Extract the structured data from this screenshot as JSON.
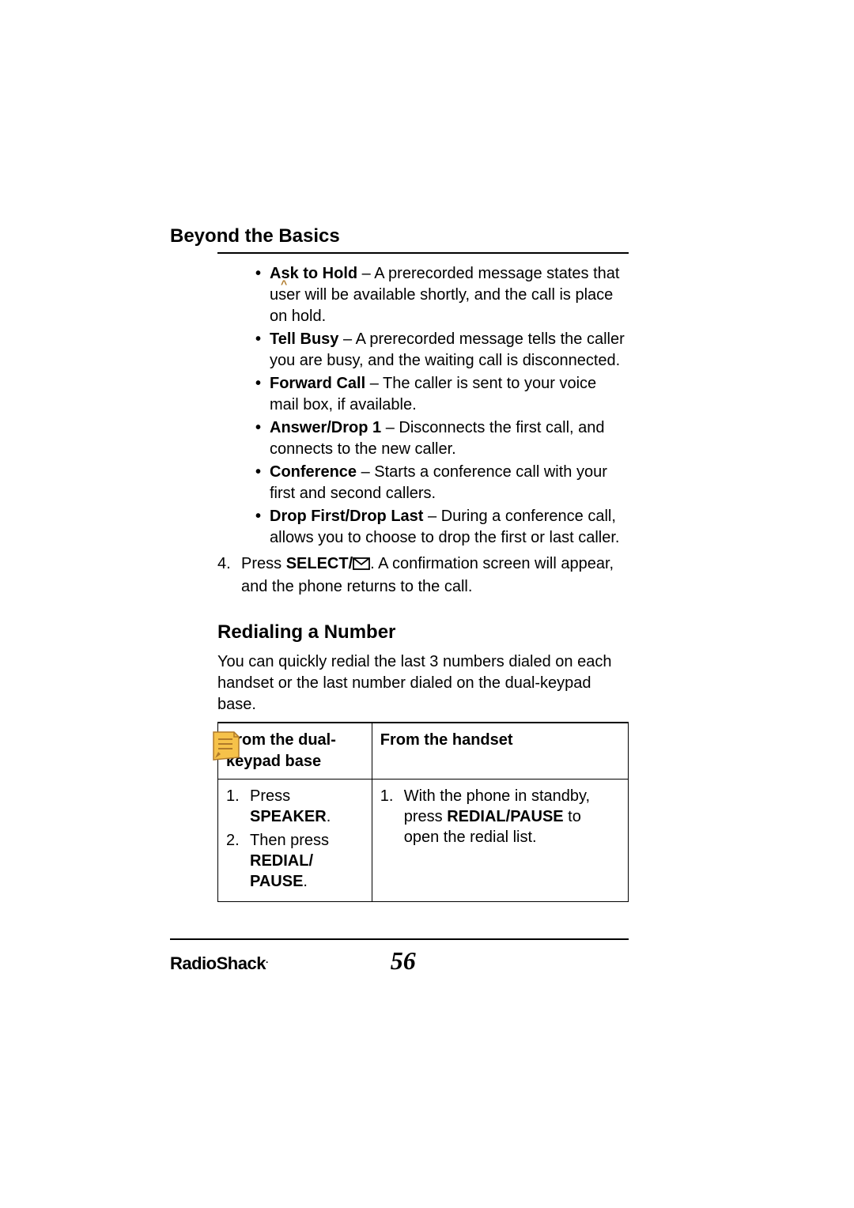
{
  "section_title": "Beyond the Basics",
  "options": [
    {
      "term": "Ask to Hold",
      "desc": " – A prerecorded message states that user will be available shortly, and the call is place on hold."
    },
    {
      "term": "Tell Busy",
      "desc": " – A prerecorded message tells the caller you are busy, and the waiting call is disconnected."
    },
    {
      "term": "Forward Call",
      "desc": " – The caller is sent to your voice mail box, if available."
    },
    {
      "term": "Answer/Drop 1",
      "desc": " – Disconnects the first call, and connects to the new caller."
    },
    {
      "term": "Conference",
      "desc": " – Starts a conference call with your first and second callers."
    },
    {
      "term": "Drop First/Drop Last",
      "desc": " – During a conference call, allows you to choose to drop the first or last caller."
    }
  ],
  "step4": {
    "num": "4.",
    "pre": "Press ",
    "bold": "SELECT/",
    "post": ". A confirmation screen will appear, and the phone returns to the call."
  },
  "subsection_title": "Redialing a Number",
  "intro": "You can quickly redial the last 3 numbers dialed on each handset or the last number dialed on the dual-keypad base.",
  "table": {
    "headers": [
      "From the dual-keypad base",
      "From the handset"
    ],
    "left": [
      {
        "n": "1.",
        "pre": "Press ",
        "b": "SPEAKER",
        "post": "."
      },
      {
        "n": "2.",
        "pre": "Then press ",
        "b": "REDIAL/ PAUSE",
        "post": "."
      }
    ],
    "right": [
      {
        "n": "1.",
        "pre": "With the phone in standby, press ",
        "b": "REDIAL/PAUSE",
        "post": " to open the redial list."
      }
    ]
  },
  "brand": "RadioShack",
  "page_number": "56",
  "colors": {
    "note_fill": "#f6c24a",
    "note_stroke": "#b07a2a"
  }
}
